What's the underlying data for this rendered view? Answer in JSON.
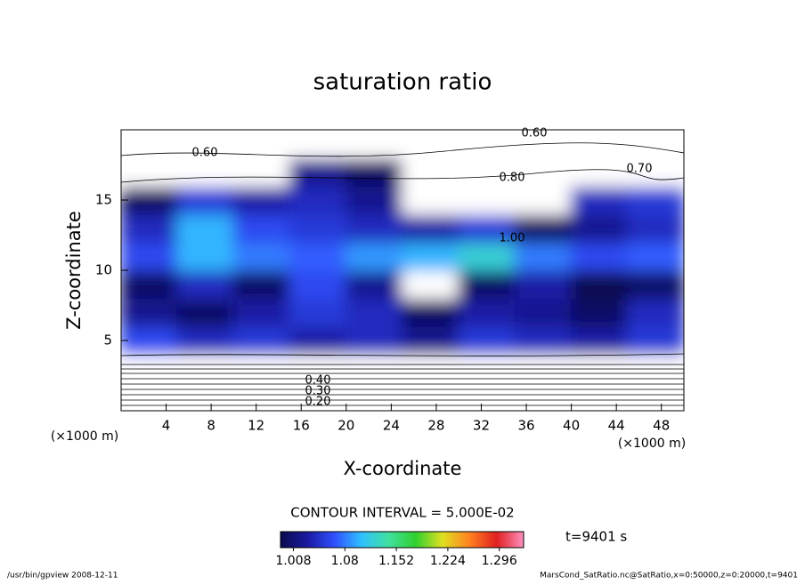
{
  "chart_data": {
    "type": "contour",
    "title": "saturation ratio",
    "xlabel": "X-coordinate",
    "ylabel": "Z-coordinate",
    "xunit": "(×1000 m)",
    "yunit": "(×1000 m)",
    "contour_interval_label": "CONTOUR INTERVAL = 5.000E-02",
    "time_label": "t=9401 s",
    "footer_left": "/usr/bin/gpview   2008-12-11",
    "footer_right": "MarsCond_SatRatio.nc@SatRatio,x=0:50000,z=0:20000,t=9401",
    "xlim": [
      0,
      50
    ],
    "ylim": [
      0,
      20
    ],
    "xticks": [
      4,
      8,
      12,
      16,
      20,
      24,
      28,
      32,
      36,
      40,
      44,
      48
    ],
    "yticks": [
      5,
      10,
      15
    ],
    "x": [
      2.5,
      7.5,
      12.5,
      17.5,
      22.5,
      27.5,
      32.5,
      37.5,
      42.5,
      47.5
    ],
    "z": [
      1,
      3,
      5,
      7,
      9,
      11,
      13,
      15,
      17,
      19
    ],
    "values": [
      [
        0.3,
        0.3,
        0.3,
        0.3,
        0.3,
        0.3,
        0.3,
        0.3,
        0.3,
        0.3
      ],
      [
        0.55,
        0.55,
        0.55,
        0.55,
        0.55,
        0.55,
        0.55,
        0.55,
        0.55,
        0.55
      ],
      [
        1.06,
        1.04,
        1.05,
        1.03,
        1.04,
        1.02,
        1.05,
        1.04,
        1.03,
        1.05
      ],
      [
        1.02,
        1.0,
        1.03,
        1.05,
        1.04,
        1.0,
        1.03,
        1.02,
        1.0,
        1.04
      ],
      [
        1.0,
        1.04,
        1.0,
        1.06,
        1.02,
        0.98,
        1.0,
        1.03,
        0.99,
        1.0
      ],
      [
        1.06,
        1.1,
        1.08,
        1.07,
        1.09,
        1.1,
        1.12,
        1.08,
        1.06,
        1.07
      ],
      [
        1.04,
        1.1,
        1.06,
        1.05,
        1.04,
        1.03,
        1.05,
        1.0,
        1.02,
        1.04
      ],
      [
        1.0,
        1.05,
        1.03,
        1.04,
        1.02,
        0.98,
        0.95,
        0.96,
        1.04,
        1.05
      ],
      [
        0.8,
        0.85,
        0.95,
        1.02,
        1.0,
        0.85,
        0.8,
        0.75,
        0.78,
        0.8
      ],
      [
        0.6,
        0.62,
        0.7,
        0.75,
        0.7,
        0.65,
        0.6,
        0.65,
        0.68,
        0.7
      ]
    ],
    "contour_labels": [
      "0.60",
      "0.60",
      "0.70",
      "0.80",
      "1.00",
      "0.40",
      "0.30",
      "0.20"
    ],
    "colormap": [
      "#0a0a50",
      "#1a1aa0",
      "#3050ff",
      "#30c0ff",
      "#40e0a0",
      "#30d030",
      "#e0e020",
      "#ff8020",
      "#e02020",
      "#ff90c0"
    ],
    "clim": [
      0.99,
      1.33
    ],
    "colorbar_ticks": [
      1.008,
      1.08,
      1.152,
      1.224,
      1.296
    ]
  }
}
